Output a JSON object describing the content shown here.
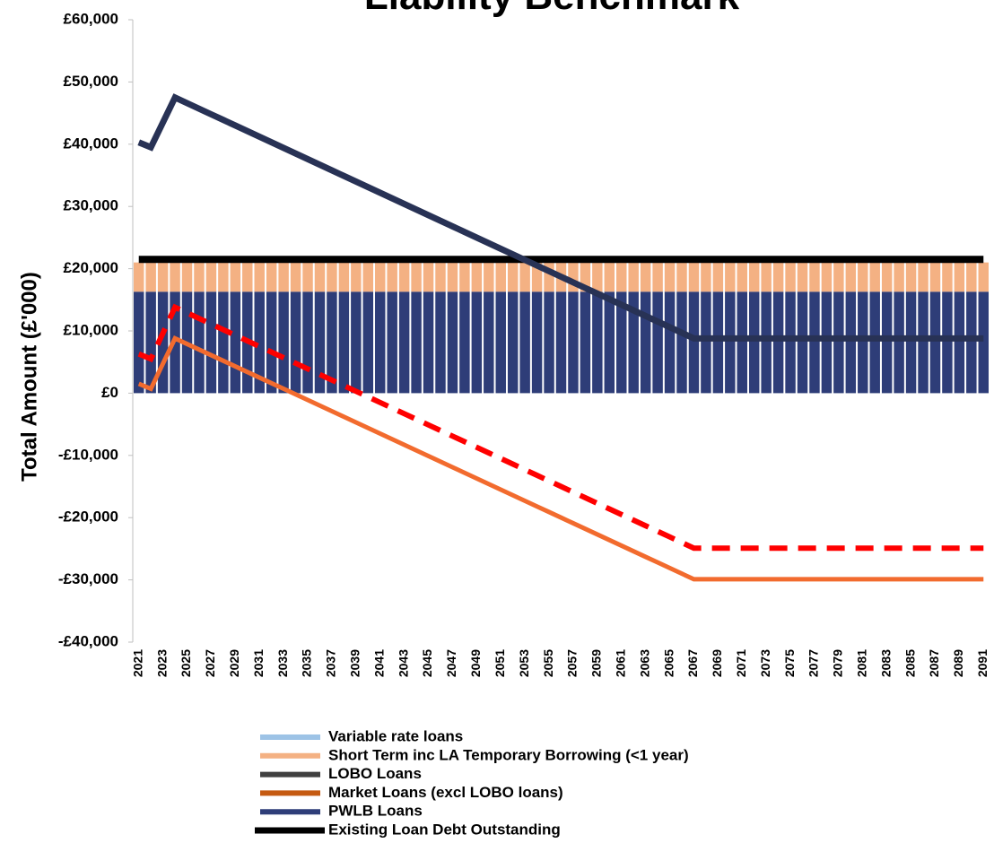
{
  "chart_data": {
    "type": "bar",
    "title": "Liability Benchmark",
    "ylabel": "Total Amount (£'000)",
    "categories": [
      "2021",
      null,
      "2023",
      null,
      "2025",
      null,
      "2027",
      null,
      "2029",
      null,
      "2031",
      null,
      "2033",
      null,
      "2035",
      null,
      "2037",
      null,
      "2039",
      null,
      "2041",
      null,
      "2043",
      null,
      "2045",
      null,
      "2047",
      null,
      "2049",
      null,
      "2051",
      null,
      "2053",
      null,
      "2055",
      null,
      "2057",
      null,
      "2059",
      null,
      "2061",
      null,
      "2063",
      null,
      "2065",
      null,
      "2067",
      null,
      "2069",
      null,
      "2071",
      null,
      "2073",
      null,
      "2075",
      null,
      "2077",
      null,
      "2079",
      null,
      "2081",
      null,
      "2083",
      null,
      "2085",
      null,
      "2087",
      null,
      "2089",
      null,
      "2091"
    ],
    "ylim": [
      -40000,
      60000
    ],
    "yticks": [
      {
        "value": -40000,
        "label": "-£40,000"
      },
      {
        "value": -30000,
        "label": "-£30,000"
      },
      {
        "value": -20000,
        "label": "-£20,000"
      },
      {
        "value": -10000,
        "label": "-£10,000"
      },
      {
        "value": 0,
        "label": "£0"
      },
      {
        "value": 10000,
        "label": "£10,000"
      },
      {
        "value": 20000,
        "label": "£20,000"
      },
      {
        "value": 30000,
        "label": "£30,000"
      },
      {
        "value": 40000,
        "label": "£40,000"
      },
      {
        "value": 50000,
        "label": "£50,000"
      },
      {
        "value": 60000,
        "label": "£60,000"
      }
    ],
    "stacked": true,
    "series": [
      {
        "name": "Variable rate loans",
        "type": "bar",
        "color": "#9dc3e6",
        "values": [
          0,
          0,
          0,
          0,
          0,
          0,
          0,
          0,
          0,
          0,
          0,
          0,
          0,
          0,
          0,
          0,
          0,
          0,
          0,
          0,
          0,
          0,
          0,
          0,
          0,
          0,
          0,
          0,
          0,
          0,
          0,
          0,
          0,
          0,
          0,
          0,
          0,
          0,
          0,
          0,
          0,
          0,
          0,
          0,
          0,
          0,
          0,
          0,
          0,
          0,
          0,
          0,
          0,
          0,
          0,
          0,
          0,
          0,
          0,
          0,
          0,
          0,
          0,
          0,
          0,
          0,
          0,
          0,
          0,
          0,
          0
        ]
      },
      {
        "name": "Short Term inc LA Temporary Borrowing (<1 year)",
        "type": "bar",
        "color": "#f4b183",
        "values": [
          4700,
          4700,
          4700,
          4700,
          4700,
          4700,
          4700,
          4700,
          4700,
          4700,
          4700,
          4700,
          4700,
          4700,
          4700,
          4700,
          4700,
          4700,
          4700,
          4700,
          4700,
          4700,
          4700,
          4700,
          4700,
          4700,
          4700,
          4700,
          4700,
          4700,
          4700,
          4700,
          4700,
          4700,
          4700,
          4700,
          4700,
          4700,
          4700,
          4700,
          4700,
          4700,
          4700,
          4700,
          4700,
          4700,
          4700,
          4700,
          4700,
          4700,
          4700,
          4700,
          4700,
          4700,
          4700,
          4700,
          4700,
          4700,
          4700,
          4700,
          4700,
          4700,
          4700,
          4700,
          4700,
          4700,
          4700,
          4700,
          4700,
          4700,
          4700
        ]
      },
      {
        "name": "LOBO Loans",
        "type": "bar",
        "color": "#404040",
        "values": [
          0,
          0,
          0,
          0,
          0,
          0,
          0,
          0,
          0,
          0,
          0,
          0,
          0,
          0,
          0,
          0,
          0,
          0,
          0,
          0,
          0,
          0,
          0,
          0,
          0,
          0,
          0,
          0,
          0,
          0,
          0,
          0,
          0,
          0,
          0,
          0,
          0,
          0,
          0,
          0,
          0,
          0,
          0,
          0,
          0,
          0,
          0,
          0,
          0,
          0,
          0,
          0,
          0,
          0,
          0,
          0,
          0,
          0,
          0,
          0,
          0,
          0,
          0,
          0,
          0,
          0,
          0,
          0,
          0,
          0,
          0
        ]
      },
      {
        "name": "Market Loans (excl LOBO loans)",
        "type": "bar",
        "color": "#c55a11",
        "values": [
          0,
          0,
          0,
          0,
          0,
          0,
          0,
          0,
          0,
          0,
          0,
          0,
          0,
          0,
          0,
          0,
          0,
          0,
          0,
          0,
          0,
          0,
          0,
          0,
          0,
          0,
          0,
          0,
          0,
          0,
          0,
          0,
          0,
          0,
          0,
          0,
          0,
          0,
          0,
          0,
          0,
          0,
          0,
          0,
          0,
          0,
          0,
          0,
          0,
          0,
          0,
          0,
          0,
          0,
          0,
          0,
          0,
          0,
          0,
          0,
          0,
          0,
          0,
          0,
          0,
          0,
          0,
          0,
          0,
          0,
          0
        ]
      },
      {
        "name": "PWLB Loans",
        "type": "bar",
        "color": "#2e3d78",
        "values": [
          16300,
          16300,
          16300,
          16300,
          16300,
          16300,
          16300,
          16300,
          16300,
          16300,
          16300,
          16300,
          16300,
          16300,
          16300,
          16300,
          16300,
          16300,
          16300,
          16300,
          16300,
          16300,
          16300,
          16300,
          16300,
          16300,
          16300,
          16300,
          16300,
          16300,
          16300,
          16300,
          16300,
          16300,
          16300,
          16300,
          16300,
          16300,
          16300,
          16300,
          16300,
          16300,
          16300,
          16300,
          16300,
          16300,
          16300,
          16300,
          16300,
          16300,
          16300,
          16300,
          16300,
          16300,
          16300,
          16300,
          16300,
          16300,
          16300,
          16300,
          16300,
          16300,
          16300,
          16300,
          16300,
          16300,
          16300,
          16300,
          16300,
          16300,
          16300
        ]
      },
      {
        "name": "Existing Loan Debt Outstanding",
        "type": "line",
        "color": "#000000",
        "width": 8,
        "values": [
          21500,
          21500,
          21500,
          21500,
          21500,
          21500,
          21500,
          21500,
          21500,
          21500,
          21500,
          21500,
          21500,
          21500,
          21500,
          21500,
          21500,
          21500,
          21500,
          21500,
          21500,
          21500,
          21500,
          21500,
          21500,
          21500,
          21500,
          21500,
          21500,
          21500,
          21500,
          21500,
          21500,
          21500,
          21500,
          21500,
          21500,
          21500,
          21500,
          21500,
          21500,
          21500,
          21500,
          21500,
          21500,
          21500,
          21500,
          21500,
          21500,
          21500,
          21500,
          21500,
          21500,
          21500,
          21500,
          21500,
          21500,
          21500,
          21500,
          21500,
          21500,
          21500,
          21500,
          21500,
          21500,
          21500,
          21500,
          21500,
          21500,
          21500,
          21500
        ]
      },
      {
        "type": "line",
        "color": "#283255",
        "width": 7,
        "values": [
          40300,
          39500,
          43500,
          47500,
          46600,
          45700,
          44800,
          43900,
          43000,
          42100,
          41200,
          40300,
          39400,
          38500,
          37600,
          36700,
          35800,
          34900,
          34000,
          33100,
          32200,
          31300,
          30400,
          29500,
          28600,
          27700,
          26800,
          25900,
          25000,
          24100,
          23200,
          22300,
          21400,
          20500,
          19600,
          18700,
          17800,
          16900,
          16000,
          15100,
          14200,
          13300,
          12400,
          11500,
          10600,
          9700,
          8800,
          8800,
          8800,
          8800,
          8800,
          8800,
          8800,
          8800,
          8800,
          8800,
          8800,
          8800,
          8800,
          8800,
          8800,
          8800,
          8800,
          8800,
          8800,
          8800,
          8800,
          8800,
          8800,
          8800,
          8800
        ]
      },
      {
        "type": "line",
        "color": "#f26b2e",
        "width": 5,
        "values": [
          1500,
          700,
          4750,
          8800,
          7900,
          7000,
          6100,
          5200,
          4300,
          3400,
          2500,
          1600,
          700,
          -200,
          -1100,
          -2000,
          -2900,
          -3800,
          -4700,
          -5600,
          -6500,
          -7400,
          -8300,
          -9200,
          -10100,
          -11000,
          -11900,
          -12800,
          -13700,
          -14600,
          -15500,
          -16400,
          -17300,
          -18200,
          -19100,
          -20000,
          -20900,
          -21800,
          -22700,
          -23600,
          -24500,
          -25400,
          -26300,
          -27200,
          -28100,
          -29000,
          -29900,
          -29900,
          -29900,
          -29900,
          -29900,
          -29900,
          -29900,
          -29900,
          -29900,
          -29900,
          -29900,
          -29900,
          -29900,
          -29900,
          -29900,
          -29900,
          -29900,
          -29900,
          -29900,
          -29900,
          -29900,
          -29900,
          -29900,
          -29900,
          -29900
        ]
      },
      {
        "type": "line",
        "color": "#ff0000",
        "width": 6,
        "dashed": true,
        "values": [
          6300,
          5500,
          9650,
          13800,
          12900,
          12000,
          11100,
          10200,
          9300,
          8400,
          7500,
          6600,
          5700,
          4800,
          3900,
          3000,
          2100,
          1200,
          300,
          -600,
          -1500,
          -2400,
          -3300,
          -4200,
          -5100,
          -6000,
          -6900,
          -7800,
          -8700,
          -9600,
          -10500,
          -11400,
          -12300,
          -13200,
          -14100,
          -15000,
          -15900,
          -16800,
          -17700,
          -18600,
          -19500,
          -20400,
          -21300,
          -22200,
          -23100,
          -24000,
          -24900,
          -24900,
          -24900,
          -24900,
          -24900,
          -24900,
          -24900,
          -24900,
          -24900,
          -24900,
          -24900,
          -24900,
          -24900,
          -24900,
          -24900,
          -24900,
          -24900,
          -24900,
          -24900,
          -24900,
          -24900,
          -24900,
          -24900,
          -24900,
          -24900
        ]
      }
    ]
  }
}
